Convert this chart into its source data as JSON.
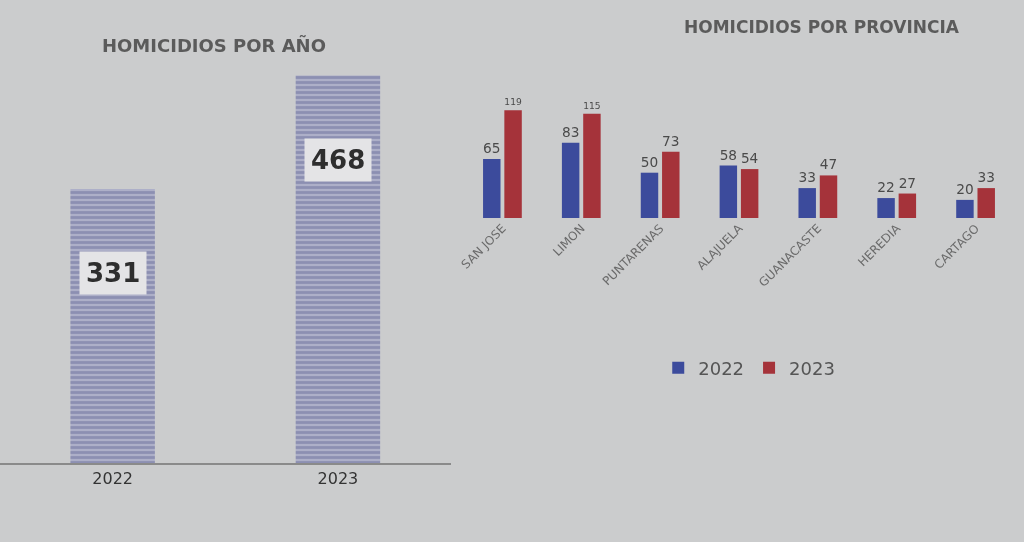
{
  "chart_data": [
    {
      "type": "bar",
      "title": "HOMICIDIOS POR AÑO",
      "categories": [
        "2022",
        "2023"
      ],
      "values": [
        331,
        468
      ],
      "color": "#6b6f9c",
      "data_labels": true,
      "tick_labels": "x"
    },
    {
      "type": "bar",
      "title": "HOMICIDIOS POR PROVINCIA",
      "categories": [
        "SAN JOSE",
        "LIMON",
        "PUNTARENAS",
        "ALAJUELA",
        "GUANACASTE",
        "HEREDIA",
        "CARTAGO"
      ],
      "series": [
        {
          "name": "2022",
          "color": "#3c4b9c",
          "values": [
            65,
            83,
            50,
            58,
            33,
            22,
            20
          ]
        },
        {
          "name": "2023",
          "color": "#a5333a",
          "values": [
            119,
            115,
            73,
            54,
            47,
            27,
            33
          ]
        }
      ],
      "data_labels": true,
      "legend": "bottom",
      "tick_labels": "x"
    }
  ]
}
